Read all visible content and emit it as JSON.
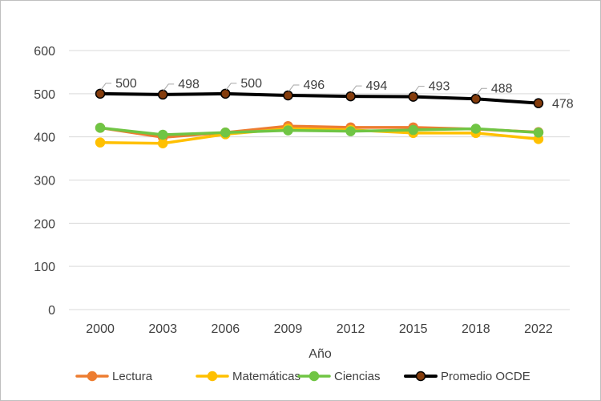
{
  "chart_data": {
    "type": "line",
    "title": "",
    "xlabel": "Año",
    "ylabel": "",
    "ylim": [
      0,
      600
    ],
    "yticks": [
      0,
      100,
      200,
      300,
      400,
      500,
      600
    ],
    "grid": true,
    "legend_position": "bottom",
    "categories": [
      "2000",
      "2003",
      "2006",
      "2009",
      "2012",
      "2015",
      "2018",
      "2022"
    ],
    "series": [
      {
        "name": "Lectura",
        "color": "#ed7d31",
        "values": [
          421,
          399,
          410,
          425,
          422,
          422,
          418,
          411
        ]
      },
      {
        "name": "Matemáticas",
        "color": "#ffc000",
        "values": [
          387,
          385,
          406,
          419,
          416,
          409,
          409,
          395
        ]
      },
      {
        "name": "Ciencias",
        "color": "#70c544",
        "values": [
          421,
          405,
          410,
          415,
          413,
          416,
          419,
          410
        ]
      },
      {
        "name": "Promedio OCDE",
        "color": "#000000",
        "marker_fill": "#843c0c",
        "values": [
          500,
          498,
          500,
          496,
          494,
          493,
          488,
          478
        ],
        "show_labels": true
      }
    ]
  }
}
